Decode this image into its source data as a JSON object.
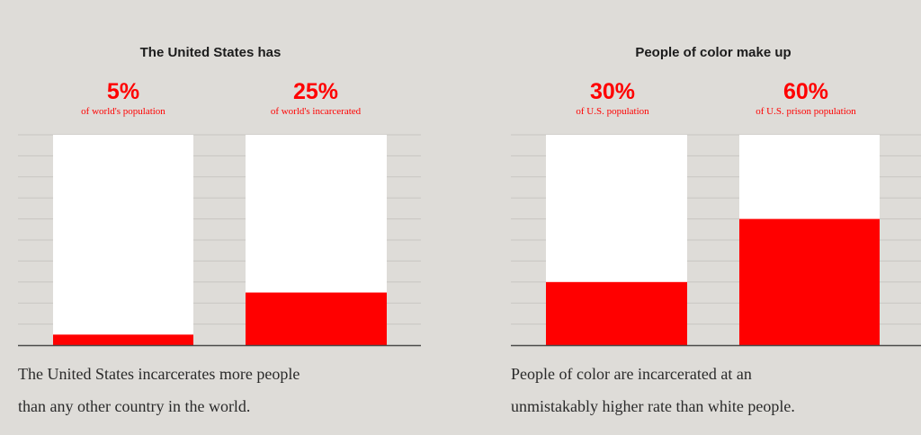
{
  "colors": {
    "background": "#dedcd8",
    "bar_track": "#ffffff",
    "bar_fill": "#ff0000",
    "text": "#1c1c1c",
    "grid": "#c8c6c2",
    "baseline": "#4a4a4a"
  },
  "panels": [
    {
      "title": "The United States has",
      "stats": [
        {
          "value": "5%",
          "label": "of world's population"
        },
        {
          "value": "25%",
          "label": "of world's incarcerated"
        }
      ],
      "caption_line1": "The United States incarcerates more people",
      "caption_line2": "than any other country in the world."
    },
    {
      "title": "People of color make up",
      "stats": [
        {
          "value": "30%",
          "label": "of U.S. population"
        },
        {
          "value": "60%",
          "label": "of U.S. prison population"
        }
      ],
      "caption_line1": "People of color are incarcerated at an",
      "caption_line2": "unmistakably higher rate than white people."
    }
  ],
  "chart_data": [
    {
      "type": "bar",
      "title": "The United States has",
      "categories": [
        "of world's population",
        "of world's incarcerated"
      ],
      "values": [
        5,
        25
      ],
      "ylim": [
        0,
        100
      ],
      "grid": true,
      "legend": "none"
    },
    {
      "type": "bar",
      "title": "People of color make up",
      "categories": [
        "of U.S. population",
        "of U.S. prison population"
      ],
      "values": [
        30,
        60
      ],
      "ylim": [
        0,
        100
      ],
      "grid": true,
      "legend": "none"
    }
  ]
}
